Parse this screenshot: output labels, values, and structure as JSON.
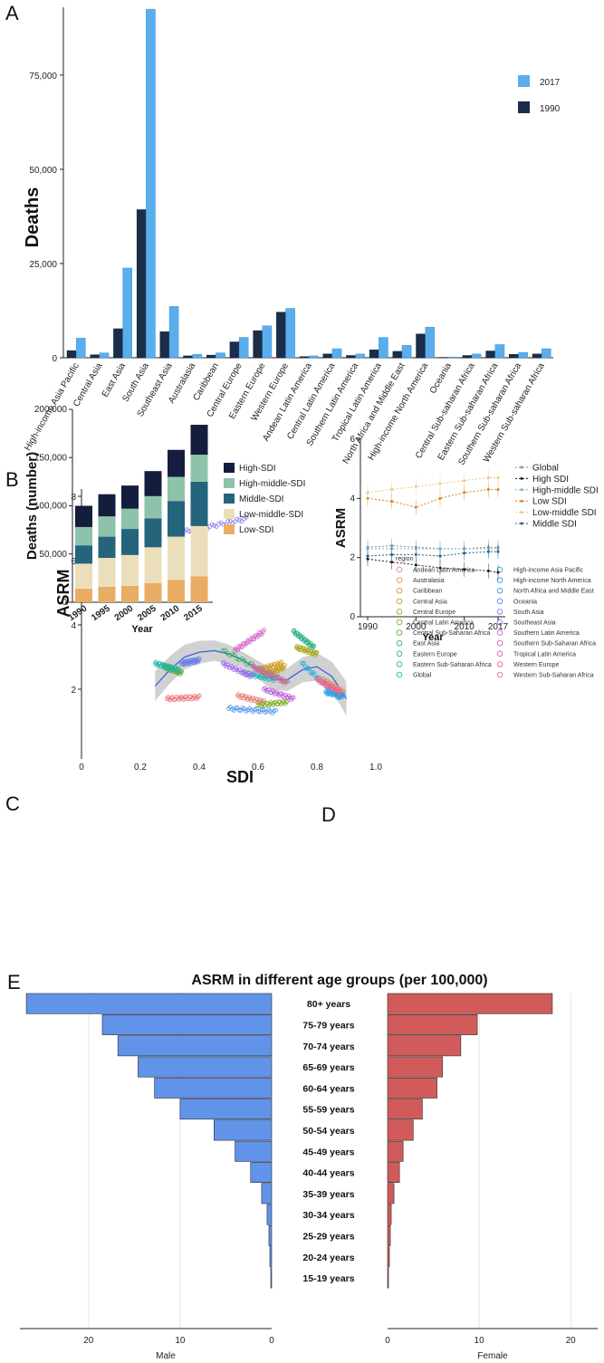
{
  "panels": {
    "a": "A",
    "b": "B",
    "c": "C",
    "d": "D",
    "e": "E"
  },
  "chart_data": [
    {
      "panel": "A",
      "type": "bar",
      "ylabel": "Deaths",
      "ylim": [
        0,
        93000
      ],
      "yticks": [
        0,
        25000,
        50000,
        75000
      ],
      "ytick_labels": [
        "0",
        "25,000",
        "50,000",
        "75,000"
      ],
      "colors": {
        "1990": "#1a2e4a",
        "2017": "#5aaeee"
      },
      "categories": [
        "High-income Asia Pacific",
        "Central Asia",
        "East Asia",
        "South Asia",
        "Southeast Asia",
        "Australasia",
        "Caribbean",
        "Central Europe",
        "Eastern Europe",
        "Western Europe",
        "Andean Latin America",
        "Central Latin America",
        "Southern Latin America",
        "Tropical Latin America",
        "North Africa and Middle East",
        "High-income North America",
        "Oceania",
        "Central Sub-saharan Africa",
        "Eastern Sub-saharan Africa",
        "Southern Sub-saharan Africa",
        "Western Sub-saharan Africa"
      ],
      "series": [
        {
          "name": "2017",
          "values": [
            5200,
            1300,
            23800,
            92500,
            13600,
            900,
            1300,
            5400,
            8500,
            13100,
            500,
            2400,
            1000,
            5400,
            3300,
            8100,
            200,
            1000,
            3500,
            1400,
            2400
          ]
        },
        {
          "name": "1990",
          "values": [
            1900,
            800,
            7700,
            39300,
            6900,
            500,
            700,
            4200,
            7200,
            12100,
            300,
            1000,
            600,
            2100,
            1700,
            6300,
            100,
            600,
            1800,
            900,
            1000
          ]
        }
      ]
    },
    {
      "panel": "B",
      "type": "scatter",
      "xlabel": "SDI",
      "ylabel": "ASRM",
      "xlim": [
        0,
        1.0
      ],
      "ylim": [
        0,
        8.3
      ],
      "xticks": [
        0,
        0.2,
        0.4,
        0.6,
        0.8,
        1.0
      ],
      "xtick_labels": [
        "0",
        "0.2",
        "0.4",
        "0.6",
        "0.8",
        "1.0"
      ],
      "yticks": [
        2,
        4,
        6,
        8
      ],
      "ytick_labels": [
        "2",
        "4",
        "6",
        "8"
      ],
      "legend_title": "region",
      "series": [
        {
          "name": "Andean Latin America",
          "color": "#e8857a",
          "x0": 0.53,
          "x1": 0.62,
          "y0": 1.8,
          "y1": 1.6
        },
        {
          "name": "Australasia",
          "color": "#e39358",
          "x0": 0.82,
          "x1": 0.89,
          "y0": 2.3,
          "y1": 1.9
        },
        {
          "name": "Caribbean",
          "color": "#d59a2c",
          "x0": 0.6,
          "x1": 0.68,
          "y0": 2.6,
          "y1": 2.8
        },
        {
          "name": "Central Asia",
          "color": "#c2a21c",
          "x0": 0.62,
          "x1": 0.69,
          "y0": 2.4,
          "y1": 2.7
        },
        {
          "name": "Central Europe",
          "color": "#a5a920",
          "x0": 0.73,
          "x1": 0.8,
          "y0": 3.3,
          "y1": 3.1
        },
        {
          "name": "Central Latin America",
          "color": "#83ae2a",
          "x0": 0.6,
          "x1": 0.7,
          "y0": 1.5,
          "y1": 1.6
        },
        {
          "name": "Central Sub-Saharan Africa",
          "color": "#54b03b",
          "x0": 0.28,
          "x1": 0.34,
          "y0": 2.7,
          "y1": 2.5
        },
        {
          "name": "East Asia",
          "color": "#2fb35a",
          "x0": 0.48,
          "x1": 0.7,
          "y0": 3.2,
          "y1": 2.2
        },
        {
          "name": "Eastern Europe",
          "color": "#27b580",
          "x0": 0.72,
          "x1": 0.79,
          "y0": 3.8,
          "y1": 3.3
        },
        {
          "name": "Eastern Sub-Saharan Africa",
          "color": "#23b4a3",
          "x0": 0.25,
          "x1": 0.33,
          "y0": 2.8,
          "y1": 2.6
        },
        {
          "name": "Global",
          "color": "#21b0bf",
          "x0": 0.55,
          "x1": 0.66,
          "y0": 2.5,
          "y1": 2.3
        },
        {
          "name": "High-income Asia Pacific",
          "color": "#25a9d3",
          "x0": 0.75,
          "x1": 0.88,
          "y0": 2.8,
          "y1": 1.7
        },
        {
          "name": "High-income North America",
          "color": "#2fa0e4",
          "x0": 0.83,
          "x1": 0.89,
          "y0": 1.9,
          "y1": 1.8
        },
        {
          "name": "North Africa and Middle East",
          "color": "#4591ea",
          "x0": 0.5,
          "x1": 0.66,
          "y0": 1.4,
          "y1": 1.3
        },
        {
          "name": "Oceania",
          "color": "#6880ee",
          "x0": 0.34,
          "x1": 0.4,
          "y0": 2.8,
          "y1": 2.9
        },
        {
          "name": "South Asia",
          "color": "#8a74ef",
          "x0": 0.35,
          "x1": 0.56,
          "y0": 6.9,
          "y1": 7.3
        },
        {
          "name": "Southeast Asia",
          "color": "#a56beb",
          "x0": 0.48,
          "x1": 0.58,
          "y0": 2.8,
          "y1": 2.4
        },
        {
          "name": "Southern Latin America",
          "color": "#bf66dc",
          "x0": 0.62,
          "x1": 0.72,
          "y0": 2.0,
          "y1": 1.7
        },
        {
          "name": "Southern Sub-Saharan Africa",
          "color": "#d162c8",
          "x0": 0.52,
          "x1": 0.62,
          "y0": 3.2,
          "y1": 3.8
        },
        {
          "name": "Tropical Latin America",
          "color": "#e05fae",
          "x0": 0.58,
          "x1": 0.7,
          "y0": 2.7,
          "y1": 2.2
        },
        {
          "name": "Western Europe",
          "color": "#ea6591",
          "x0": 0.8,
          "x1": 0.88,
          "y0": 2.3,
          "y1": 1.9
        },
        {
          "name": "Western Sub-Saharan Africa",
          "color": "#ec7276",
          "x0": 0.29,
          "x1": 0.4,
          "y0": 1.7,
          "y1": 1.75
        }
      ],
      "smooth": {
        "x": [
          0.25,
          0.3,
          0.35,
          0.4,
          0.45,
          0.5,
          0.55,
          0.6,
          0.65,
          0.7,
          0.75,
          0.8,
          0.85,
          0.88,
          0.9
        ],
        "y": [
          2.1,
          2.6,
          3.0,
          3.15,
          3.2,
          3.1,
          2.9,
          2.6,
          2.3,
          2.3,
          2.6,
          2.7,
          2.4,
          2.0,
          1.7
        ]
      }
    },
    {
      "panel": "C",
      "type": "bar",
      "xlabel": "Year",
      "ylabel": "Deaths (number)",
      "ylim": [
        0,
        200000
      ],
      "yticks": [
        0,
        50000,
        100000,
        150000,
        200000
      ],
      "ytick_labels": [
        "0",
        "50,000",
        "100,000",
        "150,000",
        "200,000"
      ],
      "categories": [
        "1990",
        "1995",
        "2000",
        "2005",
        "2010",
        "2015"
      ],
      "series": [
        {
          "name": "Low-SDI",
          "color": "#e8ad63",
          "values": [
            14000,
            16000,
            17000,
            20000,
            23000,
            27000
          ]
        },
        {
          "name": "Low-middle-SDI",
          "color": "#eadfba",
          "values": [
            26000,
            30000,
            32000,
            37000,
            45000,
            52000
          ]
        },
        {
          "name": "Middle-SDI",
          "color": "#24647c",
          "values": [
            19000,
            22000,
            27000,
            30000,
            37000,
            46000
          ]
        },
        {
          "name": "High-middle-SDI",
          "color": "#8ec3ab",
          "values": [
            19000,
            21000,
            21000,
            23000,
            25000,
            28000
          ]
        },
        {
          "name": "High-SDI",
          "color": "#151d3e",
          "values": [
            22000,
            23000,
            24000,
            26000,
            28000,
            31000
          ]
        }
      ],
      "legend_order": [
        "High-SDI",
        "High-middle-SDI",
        "Middle-SDI",
        "Low-middle-SDI",
        "Low-SDI"
      ]
    },
    {
      "panel": "D",
      "type": "line",
      "xlabel": "Year",
      "ylabel": "ASRM",
      "xlim": [
        1988.5,
        2018.5
      ],
      "ylim": [
        0,
        6
      ],
      "x": [
        1990,
        1995,
        2000,
        2005,
        2010,
        2015,
        2017
      ],
      "xticks": [
        1990,
        2000,
        2010,
        2017
      ],
      "xtick_labels": [
        "1990",
        "2000",
        "2010",
        "2017"
      ],
      "yticks": [
        0,
        2,
        4,
        6
      ],
      "ytick_labels": [
        "0",
        "2",
        "4",
        "6"
      ],
      "series": [
        {
          "name": "Global",
          "color": "#8c8c8c",
          "values": [
            2.35,
            2.4,
            2.35,
            2.3,
            2.3,
            2.35,
            2.35
          ]
        },
        {
          "name": "High SDI",
          "color": "#1a1a1a",
          "values": [
            1.95,
            1.85,
            1.75,
            1.65,
            1.6,
            1.55,
            1.5
          ]
        },
        {
          "name": "High-middle SDI",
          "color": "#7fb0cf",
          "values": [
            2.3,
            2.3,
            2.3,
            2.3,
            2.3,
            2.3,
            2.3
          ]
        },
        {
          "name": "Low SDI",
          "color": "#d9822b",
          "values": [
            4.0,
            3.9,
            3.7,
            4.0,
            4.2,
            4.3,
            4.3
          ]
        },
        {
          "name": "Low-middle SDI",
          "color": "#f0c48a",
          "values": [
            4.2,
            4.3,
            4.4,
            4.5,
            4.6,
            4.7,
            4.7
          ]
        },
        {
          "name": "Middle SDI",
          "color": "#1f5f8b",
          "values": [
            2.05,
            2.1,
            2.1,
            2.05,
            2.15,
            2.2,
            2.2
          ]
        }
      ]
    },
    {
      "panel": "E",
      "type": "bar",
      "title": "ASRM in different age groups (per 100,000)",
      "categories": [
        "80+ years",
        "75-79 years",
        "70-74 years",
        "65-69 years",
        "60-64 years",
        "55-59 years",
        "50-54 years",
        "45-49 years",
        "40-44 years",
        "35-39 years",
        "30-34 years",
        "25-29 years",
        "20-24 years",
        "15-19 years"
      ],
      "xlim": [
        0,
        27.5
      ],
      "xticks": [
        20,
        10,
        0
      ],
      "xtick_labels": [
        "20",
        "10",
        "0"
      ],
      "series": [
        {
          "name": "Male",
          "color": "#6193e8",
          "values": [
            26.8,
            18.5,
            16.8,
            14.6,
            12.8,
            10.0,
            6.3,
            4.0,
            2.3,
            1.1,
            0.5,
            0.3,
            0.2,
            0.1
          ]
        },
        {
          "name": "Female",
          "color": "#d15b5b",
          "values": [
            18.0,
            9.8,
            8.0,
            6.0,
            5.4,
            3.8,
            2.8,
            1.7,
            1.3,
            0.7,
            0.4,
            0.3,
            0.2,
            0.1
          ]
        }
      ]
    }
  ]
}
